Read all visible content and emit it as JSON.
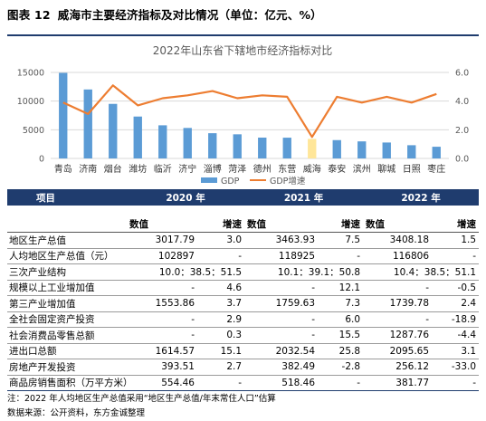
{
  "heading": {
    "number": "图表 12",
    "text": "威海市主要经济指标及对比情况（单位：亿元、%）"
  },
  "chart_data": {
    "type": "bar",
    "title": "2022年山东省下辖地市经济指标对比",
    "categories": [
      "青岛",
      "济南",
      "烟台",
      "潍坊",
      "临沂",
      "济宁",
      "淄博",
      "菏泽",
      "德州",
      "东营",
      "威海",
      "泰安",
      "滨州",
      "聊城",
      "日照",
      "枣庄"
    ],
    "series": [
      {
        "name": "GDP",
        "kind": "bar",
        "axis": "left",
        "values": [
          14920.75,
          12027.5,
          9515.86,
          7306.45,
          5778.6,
          5316.9,
          4402.6,
          4209.1,
          3633.15,
          3620.5,
          3408.18,
          3198.1,
          2976.2,
          2778.4,
          2306.8,
          2039.8
        ]
      },
      {
        "name": "GDP增速",
        "kind": "line",
        "axis": "right",
        "values": [
          3.9,
          3.1,
          5.1,
          3.7,
          4.2,
          4.4,
          4.7,
          4.2,
          4.4,
          4.3,
          1.5,
          4.3,
          3.9,
          4.3,
          3.9,
          4.5
        ]
      }
    ],
    "highlight_category": "威海",
    "ylim_left": [
      0,
      15000
    ],
    "left_ticks": [
      0,
      5000,
      10000,
      15000
    ],
    "ylim_right": [
      0,
      6
    ],
    "right_ticks": [
      "0.0",
      "2.0",
      "4.0",
      "6.0"
    ],
    "grid": true,
    "legend_position": "bottom",
    "colors": {
      "bar": "#5b9bd5",
      "highlight": "#ffe699",
      "line": "#ed7d31",
      "grid": "#d9d9d9",
      "text": "#595959"
    }
  },
  "table": {
    "year_header": [
      "项目",
      "2020 年",
      "2021 年",
      "2022 年"
    ],
    "sub_header": [
      "",
      "数值",
      "增速",
      "数值",
      "增速",
      "数值",
      "增速"
    ],
    "rows": [
      {
        "label": "地区生产总值",
        "cells": [
          "3017.79",
          "3.0",
          "3463.93",
          "7.5",
          "3408.18",
          "1.5"
        ]
      },
      {
        "label": "人均地区生产总值（元）",
        "cells": [
          "102897",
          "-",
          "118925",
          "-",
          "116806",
          "-"
        ]
      },
      {
        "label": "三次产业结构",
        "spans": [
          "10.0：38.5：51.5",
          "10.1：39.1：50.8",
          "10.4：38.5：51.1"
        ]
      },
      {
        "label": "规模以上工业增加值",
        "cells": [
          "-",
          "4.6",
          "-",
          "12.1",
          "-",
          "-0.5"
        ]
      },
      {
        "label": "第三产业增加值",
        "cells": [
          "1553.86",
          "3.7",
          "1759.63",
          "7.3",
          "1739.78",
          "2.4"
        ]
      },
      {
        "label": "全社会固定资产投资",
        "cells": [
          "-",
          "2.9",
          "-",
          "6.0",
          "-",
          "-18.9"
        ]
      },
      {
        "label": "社会消费品零售总额",
        "cells": [
          "-",
          "0.3",
          "-",
          "15.5",
          "1287.76",
          "-4.4"
        ]
      },
      {
        "label": "进出口总额",
        "cells": [
          "1614.57",
          "15.1",
          "2032.54",
          "25.8",
          "2095.65",
          "3.1"
        ]
      },
      {
        "label": "房地产开发投资",
        "cells": [
          "393.51",
          "2.7",
          "382.49",
          "-2.8",
          "256.12",
          "-33.0"
        ]
      },
      {
        "label": "商品房销售面积（万平方米）",
        "cells": [
          "554.46",
          "-",
          "518.46",
          "-",
          "381.77",
          "-"
        ]
      }
    ]
  },
  "footer": {
    "note": "注：2022 年人均地区生产总值采用“地区生产总值/年末常住人口”估算",
    "source": "数据来源：公开资料，东方金诚整理"
  }
}
